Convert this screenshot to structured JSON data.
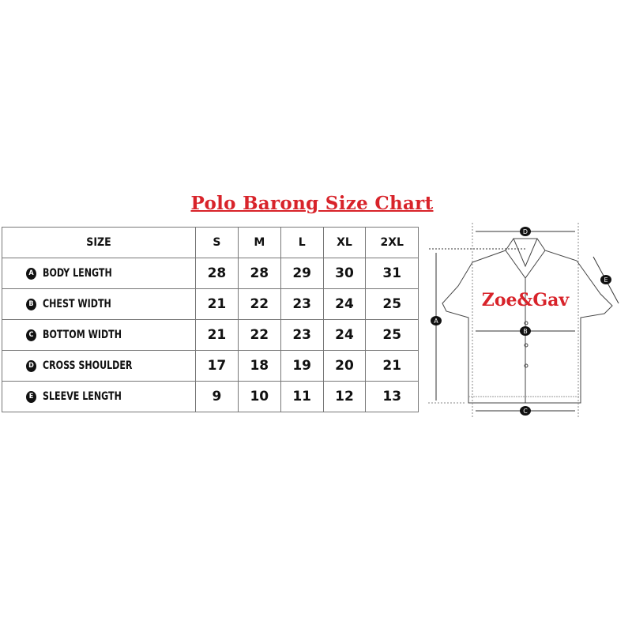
{
  "title": "Polo Barong Size Chart",
  "watermark": "Zoe&Gav",
  "chart_data": {
    "type": "table",
    "title": "Polo Barong Size Chart",
    "header": "SIZE",
    "columns": [
      "S",
      "M",
      "L",
      "XL",
      "2XL"
    ],
    "rows": [
      {
        "key": "A",
        "label": "BODY LENGTH",
        "values": [
          28,
          28,
          29,
          30,
          31
        ]
      },
      {
        "key": "B",
        "label": "CHEST WIDTH",
        "values": [
          21,
          22,
          23,
          24,
          25
        ]
      },
      {
        "key": "C",
        "label": "BOTTOM WIDTH",
        "values": [
          21,
          22,
          23,
          24,
          25
        ]
      },
      {
        "key": "D",
        "label": "CROSS SHOULDER",
        "values": [
          17,
          18,
          19,
          20,
          21
        ]
      },
      {
        "key": "E",
        "label": "SLEEVE LENGTH",
        "values": [
          9,
          10,
          11,
          12,
          13
        ]
      }
    ]
  },
  "diagram_markers": [
    "A",
    "B",
    "C",
    "D",
    "E"
  ],
  "colors": {
    "title": "#d8232a",
    "grid": "#777777",
    "text": "#111111"
  }
}
